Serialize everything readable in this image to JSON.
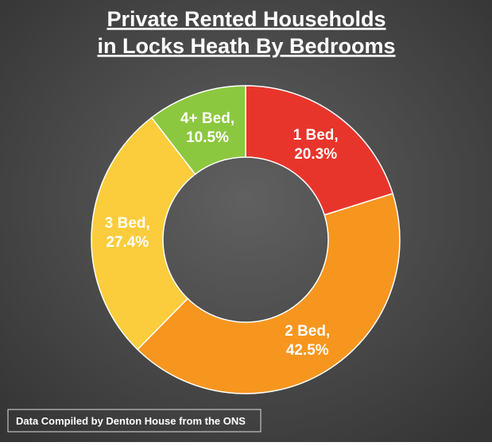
{
  "chart_data": {
    "type": "donut",
    "title": [
      "Private Rented Households",
      "in Locks Heath By Bedrooms"
    ],
    "categories": [
      "1 Bed,",
      "2 Bed,",
      "3 Bed,",
      "4+ Bed,"
    ],
    "values": [
      20.3,
      42.5,
      27.4,
      10.5
    ],
    "value_labels": [
      "20.3%",
      "42.5%",
      "27.4%",
      "10.5%"
    ],
    "colors": [
      "#e8352c",
      "#f7961f",
      "#fbcd3c",
      "#8cc83f"
    ],
    "source": "Data Compiled by Denton House from the ONS"
  }
}
